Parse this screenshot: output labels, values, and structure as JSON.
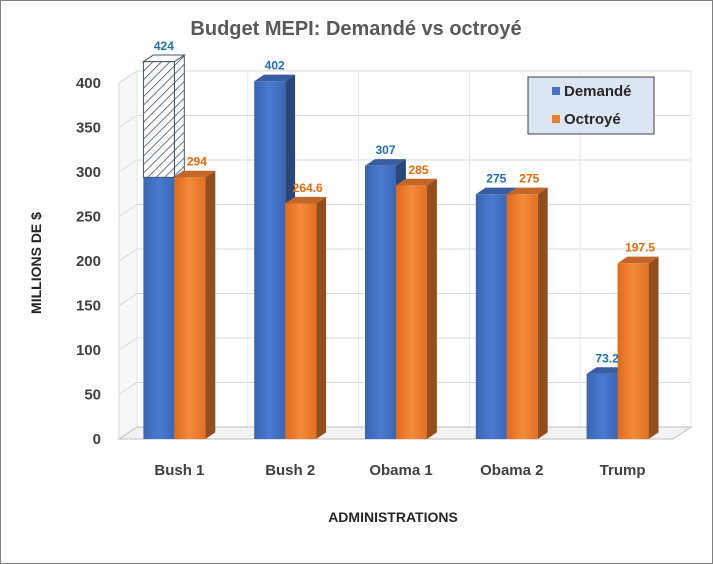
{
  "chart_data": {
    "type": "bar",
    "title": "Budget MEPI: Demandé vs octroyé",
    "xlabel": "ADMINISTRATIONS",
    "ylabel": "MILLIONS DE $",
    "categories": [
      "Bush 1",
      "Bush 2",
      "Obama 1",
      "Obama 2",
      "Trump"
    ],
    "series": [
      {
        "name": "Demandé",
        "values": [
          424,
          402,
          307,
          275,
          73.2
        ],
        "labels": [
          "424",
          "402",
          "307",
          "275",
          "73.2"
        ],
        "color": "#4472C4",
        "label_color": "#1F6FB4"
      },
      {
        "name": "Octroyé",
        "values": [
          294,
          264.6,
          285,
          275,
          197.5
        ],
        "labels": [
          "294",
          "264.6",
          "285",
          "275",
          "197.5"
        ],
        "color": "#ED7D31",
        "label_color": "#E46C0A"
      }
    ],
    "ylim": [
      0,
      400
    ],
    "yticks": [
      0,
      50,
      100,
      150,
      200,
      250,
      300,
      350,
      400
    ],
    "grid": true,
    "legend_position": "top-right",
    "overflow_hatched_category": "Bush 1",
    "overflow_hatched_from": 294
  }
}
